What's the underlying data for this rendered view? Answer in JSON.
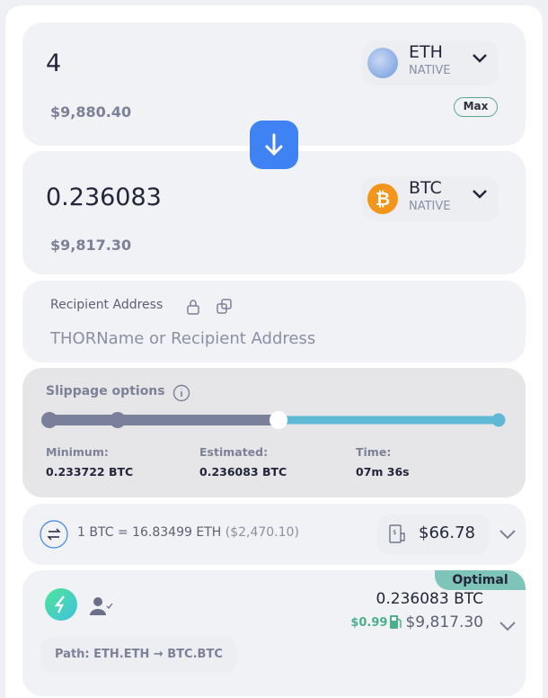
{
  "from": {
    "amount": "4",
    "usd": "$9,880.40",
    "symbol": "ETH",
    "chain": "NATIVE",
    "icon": "eth-llama-icon",
    "max_label": "Max"
  },
  "to": {
    "amount": "0.236083",
    "usd": "$9,817.30",
    "symbol": "BTC",
    "chain": "NATIVE",
    "icon": "bitcoin-icon"
  },
  "recipient": {
    "label": "Recipient Address",
    "placeholder": "THORName or Recipient Address"
  },
  "slippage": {
    "title": "Slippage options",
    "level_index": 2,
    "levels": 4,
    "minimum_label": "Minimum:",
    "minimum_value": "0.233722 BTC",
    "estimated_label": "Estimated:",
    "estimated_value": "0.236083 BTC",
    "time_label": "Time:",
    "time_value": "07m 36s"
  },
  "rate": {
    "text": "1 BTC = 16.83499 ETH",
    "usd": "($2,470.10)",
    "fee": "$66.78"
  },
  "route": {
    "badge": "Optimal",
    "amount": "0.236083 BTC",
    "gas": "$0.99",
    "usd": "$9,817.30",
    "path": "Path: ETH.ETH → BTC.BTC"
  },
  "colors": {
    "accent": "#3f82f3",
    "slider_filled": "#7a7f9a",
    "slider_remaining": "#5fb8d6",
    "green": "#4caf8a",
    "optimal": "#7fc4b8"
  }
}
